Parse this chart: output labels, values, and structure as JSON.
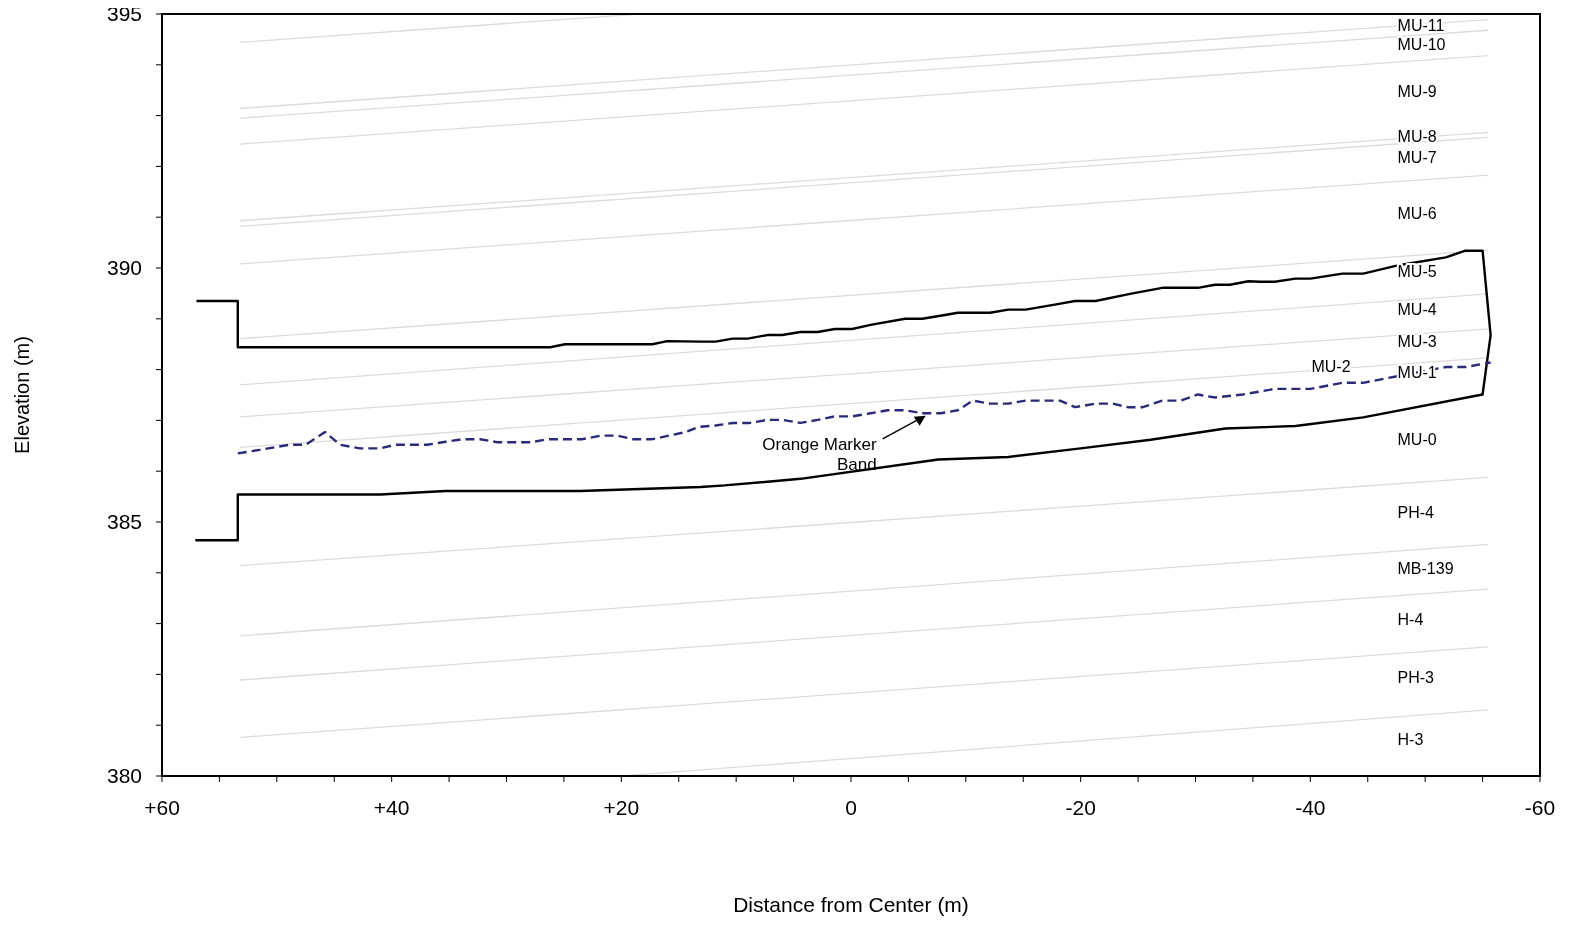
{
  "chart_data": {
    "type": "line",
    "xlabel": "Distance from Center (m)",
    "ylabel": "Elevation (m)",
    "xlim": [
      60,
      -60
    ],
    "xticks": [
      {
        "value": 60,
        "label": "+60"
      },
      {
        "value": 55,
        "label": null
      },
      {
        "value": 50,
        "label": null
      },
      {
        "value": 45,
        "label": null
      },
      {
        "value": 40,
        "label": "+40"
      },
      {
        "value": 35,
        "label": null
      },
      {
        "value": 30,
        "label": null
      },
      {
        "value": 25,
        "label": null
      },
      {
        "value": 20,
        "label": "+20"
      },
      {
        "value": 15,
        "label": null
      },
      {
        "value": 10,
        "label": null
      },
      {
        "value": 5,
        "label": null
      },
      0,
      {
        "value": -5,
        "label": null
      },
      {
        "value": -10,
        "label": null
      },
      {
        "value": -15,
        "label": null
      },
      -20,
      {
        "value": -25,
        "label": null
      },
      {
        "value": -30,
        "label": null
      },
      {
        "value": -35,
        "label": null
      },
      -40,
      {
        "value": -45,
        "label": null
      },
      {
        "value": -50,
        "label": null
      },
      {
        "value": -55,
        "label": null
      },
      -60
    ],
    "ylim": [
      380,
      395
    ],
    "yticks": [
      380,
      {
        "value": 381,
        "label": null
      },
      {
        "value": 382,
        "label": null
      },
      {
        "value": 383,
        "label": null
      },
      {
        "value": 384,
        "label": null
      },
      385,
      {
        "value": 386,
        "label": null
      },
      {
        "value": 387,
        "label": null
      },
      {
        "value": 388,
        "label": null
      },
      {
        "value": 389,
        "label": null
      },
      390,
      {
        "value": 391,
        "label": null
      },
      {
        "value": 392,
        "label": null
      },
      {
        "value": 393,
        "label": null
      },
      {
        "value": 394,
        "label": null
      },
      395
    ],
    "grid": false,
    "legend": false,
    "marker": "none",
    "series": [
      {
        "color": "#dcdcdc",
        "x": [
          53.2,
          18.4
        ],
        "values": [
          394.44,
          395
        ]
      },
      {
        "color": "#dcdcdc",
        "x": [
          53.2,
          -55.5
        ],
        "values": [
          393.14,
          394.89
        ]
      },
      {
        "color": "#dcdcdc",
        "x": [
          53.2,
          -55.5
        ],
        "values": [
          392.95,
          394.68
        ]
      },
      {
        "color": "#dcdcdc",
        "x": [
          53.2,
          -55.5
        ],
        "values": [
          392.44,
          394.18
        ]
      },
      {
        "color": "#dcdcdc",
        "x": [
          53.2,
          -55.5
        ],
        "values": [
          390.93,
          392.67
        ]
      },
      {
        "color": "#dcdcdc",
        "x": [
          53.2,
          -55.5
        ],
        "values": [
          390.82,
          392.57
        ]
      },
      {
        "color": "#dcdcdc",
        "x": [
          53.2,
          -55.5
        ],
        "values": [
          390.08,
          391.83
        ]
      },
      {
        "color": "#dcdcdc",
        "x": [
          53.2,
          -55.5
        ],
        "values": [
          388.61,
          390.35
        ]
      },
      {
        "color": "#dcdcdc",
        "x": [
          53.2,
          -55.5
        ],
        "values": [
          387.7,
          389.49
        ]
      },
      {
        "color": "#dcdcdc",
        "x": [
          53.2,
          -55.5
        ],
        "values": [
          387.07,
          388.8
        ]
      },
      {
        "color": "#dcdcdc",
        "x": [
          53.2,
          -55.5
        ],
        "values": [
          386.47,
          388.23
        ]
      },
      {
        "color": "#dcdcdc",
        "x": [
          53.2,
          -55.5
        ],
        "values": [
          384.14,
          385.88
        ]
      },
      {
        "color": "#dcdcdc",
        "x": [
          53.2,
          -55.5
        ],
        "values": [
          382.76,
          384.56
        ]
      },
      {
        "color": "#dcdcdc",
        "x": [
          53.2,
          -55.5
        ],
        "values": [
          381.89,
          383.68
        ]
      },
      {
        "color": "#dcdcdc",
        "x": [
          53.2,
          -55.5
        ],
        "values": [
          380.76,
          382.54
        ]
      },
      {
        "color": "#dcdcdc",
        "x": [
          20,
          -55.5
        ],
        "values": [
          380,
          381.3
        ]
      },
      {
        "color": "#000000",
        "x": [
          57.1,
          53.4,
          53.4,
          41.0,
          35.3,
          23.6,
          13.1,
          11.0,
          4.4,
          -7.6,
          -13.7,
          -20.0,
          -26.1,
          -32.6,
          -38.7,
          -44.6,
          -55.0,
          -55.7,
          -55.0,
          -53.5,
          -51.8,
          -47.8,
          -44.6,
          -42.8,
          -40.0,
          -38.7,
          -36.9,
          -35.6,
          -34.6,
          -33.0,
          -31.7,
          -30.2,
          -27.1,
          -24.3,
          -21.3,
          -19.5,
          -18.0,
          -15.2,
          -13.7,
          -12.1,
          -9.3,
          -7.8,
          -6.2,
          -4.7,
          -1.7,
          -0.1,
          1.4,
          2.9,
          4.4,
          6.0,
          7.3,
          9.0,
          10.3,
          11.8,
          13.1,
          16.0,
          17.3,
          24.9,
          26.2,
          53.4,
          53.4,
          57.0
        ],
        "values": [
          384.64,
          384.64,
          385.54,
          385.54,
          385.61,
          385.61,
          385.69,
          385.72,
          385.85,
          386.23,
          386.28,
          386.45,
          386.62,
          386.84,
          386.89,
          387.06,
          387.51,
          388.68,
          390.34,
          390.34,
          390.21,
          390.06,
          389.89,
          389.89,
          389.79,
          389.79,
          389.73,
          389.73,
          389.74,
          389.67,
          389.67,
          389.61,
          389.61,
          389.49,
          389.35,
          389.35,
          389.29,
          389.18,
          389.18,
          389.12,
          389.12,
          389.06,
          389.0,
          389.0,
          388.88,
          388.8,
          388.8,
          388.74,
          388.74,
          388.68,
          388.68,
          388.61,
          388.61,
          388.55,
          388.55,
          388.56,
          388.5,
          388.5,
          388.44,
          388.44,
          389.35,
          389.35
        ]
      },
      {
        "color": "#2b2a78",
        "line_style": "dashed",
        "x": [
          53.4,
          51.5,
          48.9,
          47.5,
          45.8,
          44.5,
          42.8,
          41.0,
          39.7,
          36.9,
          35.3,
          33.8,
          32.3,
          30.8,
          27.9,
          26.4,
          23.4,
          21.8,
          20.3,
          19.0,
          17.3,
          14.4,
          13.3,
          11.8,
          10.3,
          8.8,
          7.3,
          6.0,
          4.4,
          2.9,
          1.4,
          -0.1,
          -1.7,
          -3.2,
          -4.7,
          -6.2,
          -7.8,
          -9.3,
          -10.6,
          -12.1,
          -13.7,
          -15.2,
          -18.2,
          -19.5,
          -21.3,
          -22.8,
          -24.1,
          -25.4,
          -27.1,
          -28.7,
          -30.2,
          -31.7,
          -34.1,
          -36.9,
          -40.0,
          -42.8,
          -44.6,
          -47.8,
          -51.8,
          -53.5,
          -55.7
        ],
        "values": [
          386.35,
          386.42,
          386.52,
          386.52,
          386.77,
          386.52,
          386.45,
          386.45,
          386.52,
          386.52,
          386.58,
          386.63,
          386.63,
          386.57,
          386.57,
          386.63,
          386.63,
          386.7,
          386.7,
          386.63,
          386.63,
          386.77,
          386.87,
          386.9,
          386.95,
          386.95,
          387.01,
          387.01,
          386.95,
          387.01,
          387.08,
          387.08,
          387.14,
          387.2,
          387.2,
          387.14,
          387.14,
          387.2,
          387.39,
          387.33,
          387.33,
          387.39,
          387.39,
          387.26,
          387.33,
          387.33,
          387.26,
          387.26,
          387.39,
          387.39,
          387.51,
          387.45,
          387.51,
          387.62,
          387.62,
          387.74,
          387.74,
          387.88,
          388.05,
          388.05,
          388.14
        ]
      }
    ],
    "annotations": [
      {
        "text": "MU-11",
        "x": -47.6,
        "y": 394.67
      },
      "MU-10",
      "MU-9",
      {
        "text": "MU-8",
        "x": -47.6,
        "y": 392.49
      },
      "MU-7",
      "MU-6",
      "MU-5",
      "MU-4",
      "MU-3",
      {
        "text": "MU-2",
        "x": -40.1,
        "y": 387.96
      },
      {
        "text": "MU-1",
        "x": -47.6,
        "y": 387.83
      },
      "MU-0",
      "PH-4",
      "MB-139",
      "H-4",
      "PH-3",
      "H-3",
      {
        "text": "Orange Marker\nBand",
        "x": -6.5,
        "y": 387.09
      }
    ]
  }
}
